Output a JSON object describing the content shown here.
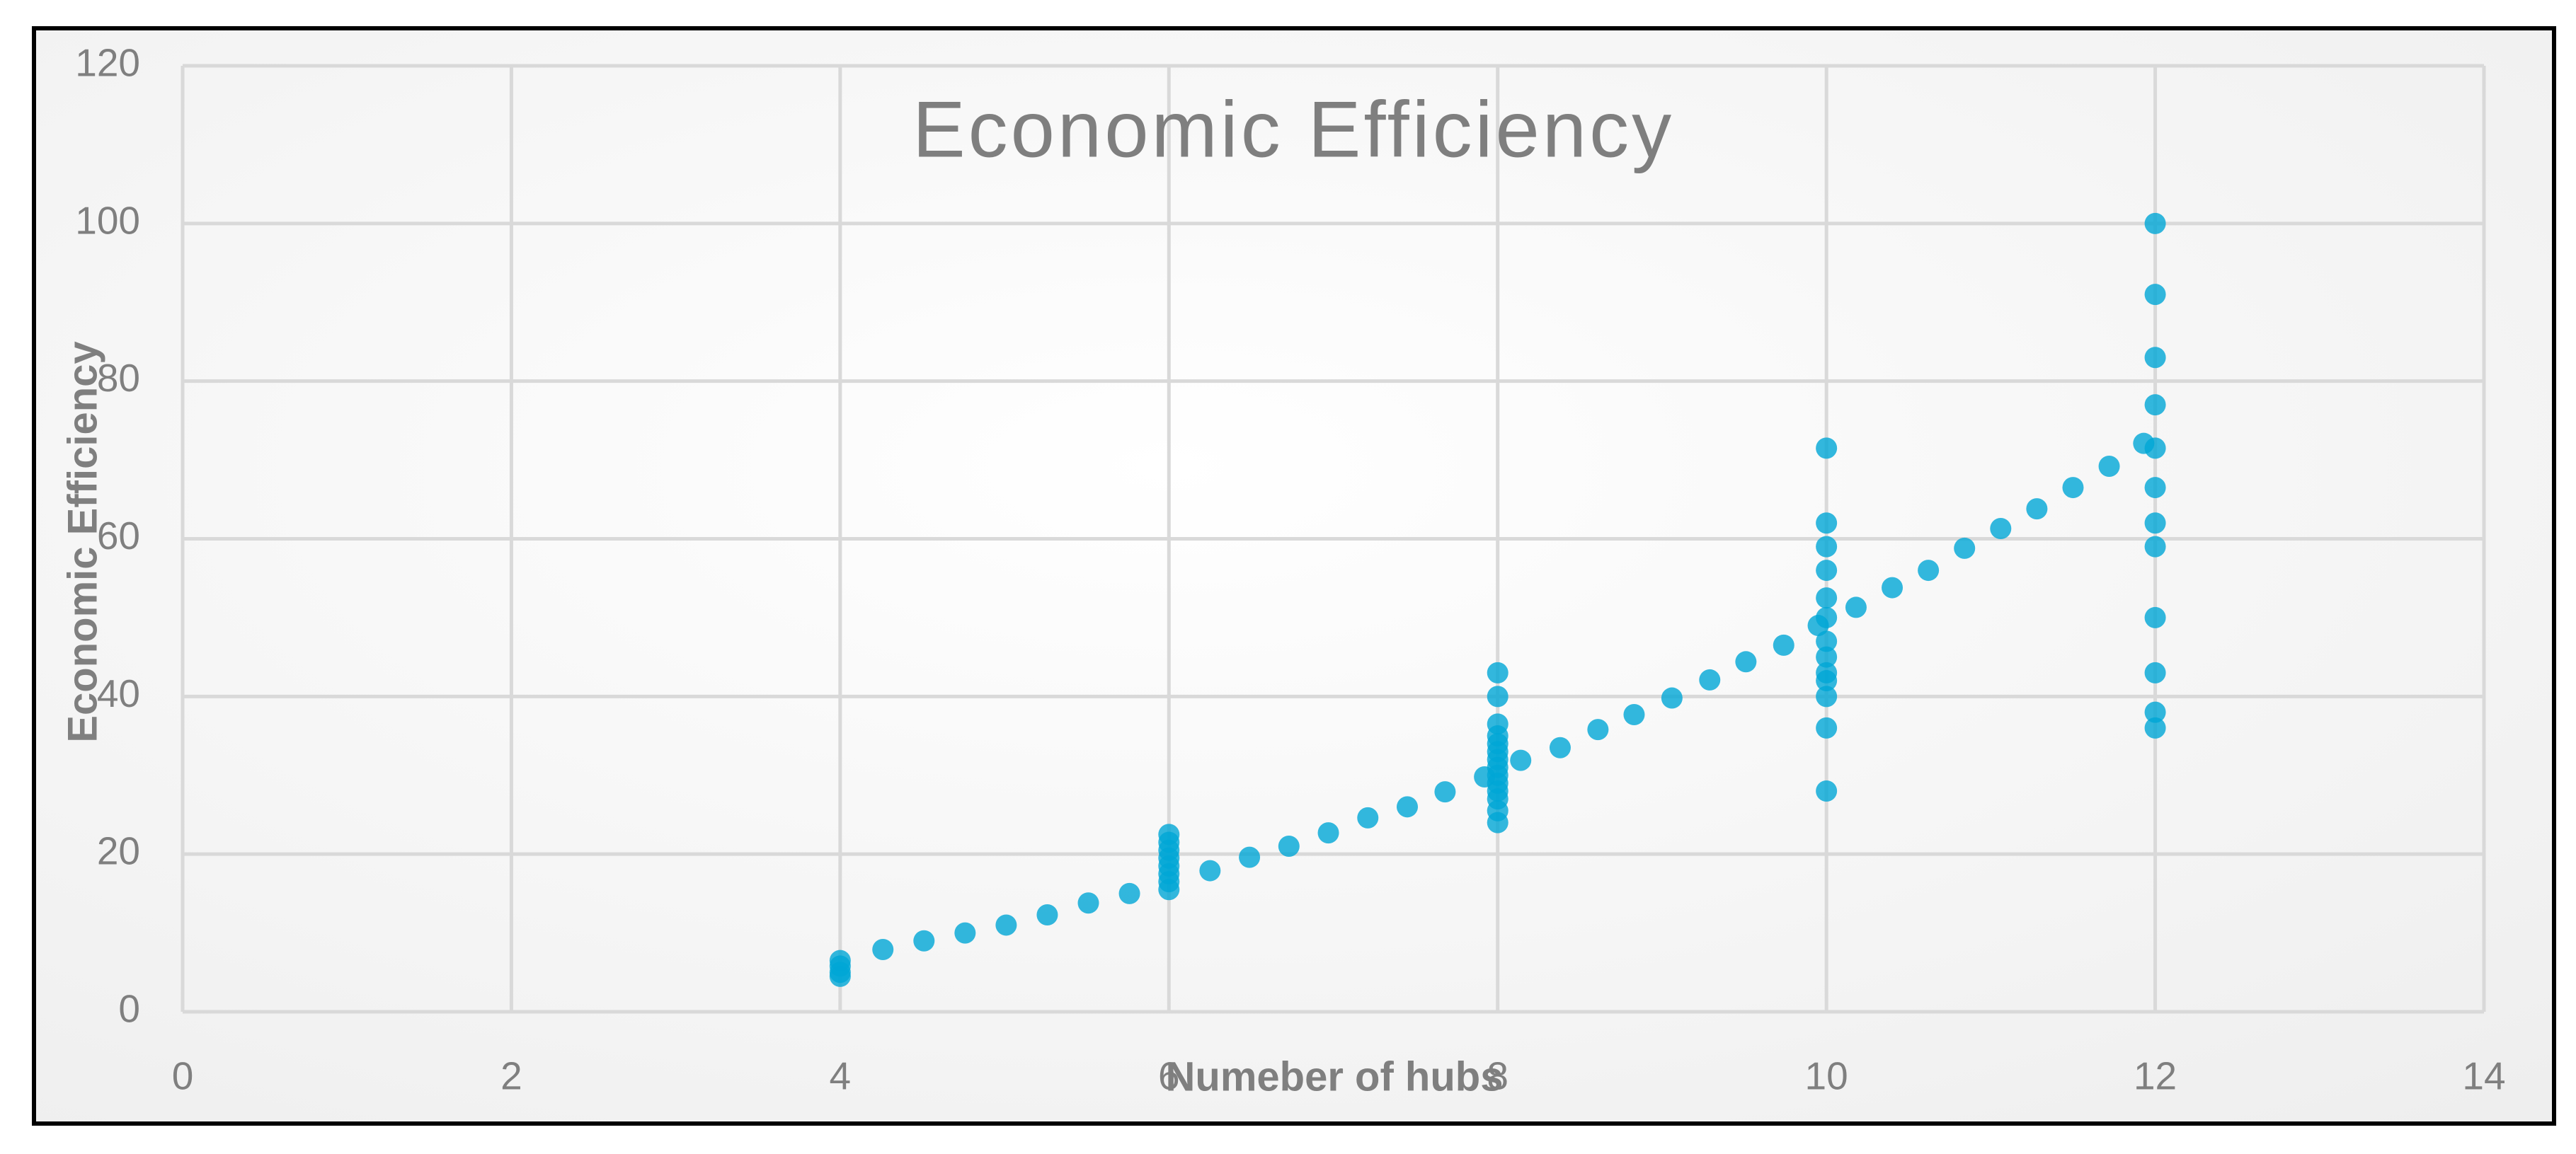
{
  "chart_data": {
    "type": "scatter",
    "title": "Economic Efficiency",
    "x_label": "Numeber of hubs",
    "y_label": "Economic Efficiency",
    "xlim": [
      0,
      14
    ],
    "xticks": [
      0,
      2,
      4,
      6,
      8,
      10,
      12,
      14
    ],
    "ylim": [
      0,
      120
    ],
    "yticks": [
      0,
      20,
      40,
      60,
      80,
      100,
      120
    ],
    "grid": true,
    "color": "#00a6d6",
    "x": [
      4,
      4,
      4,
      4,
      6,
      6,
      6,
      6,
      6,
      6,
      6,
      6,
      8,
      8,
      8,
      8,
      8,
      8,
      8,
      8,
      8,
      8,
      8,
      8,
      8,
      8,
      10,
      10,
      10,
      10,
      10,
      10,
      10,
      10,
      10,
      10,
      10,
      10,
      10,
      12,
      12,
      12,
      12,
      12,
      12,
      12,
      12,
      12,
      12,
      12,
      12,
      4.26,
      4.51,
      4.76,
      5.01,
      5.26,
      5.51,
      5.76,
      6.25,
      6.49,
      6.73,
      6.97,
      7.21,
      7.45,
      7.68,
      7.92,
      8.14,
      8.38,
      8.61,
      8.83,
      9.06,
      9.29,
      9.51,
      9.74,
      9.95,
      10.18,
      10.4,
      10.62,
      10.84,
      11.06,
      11.28,
      11.5,
      11.72,
      11.93
    ],
    "values": [
      4.5,
      5,
      5.8,
      6.5,
      15.5,
      16.5,
      17.5,
      18.5,
      19.5,
      20.5,
      21.5,
      22.5,
      24,
      25.5,
      27,
      28,
      29,
      30,
      31,
      32,
      33,
      34,
      35,
      36.5,
      40,
      43,
      28,
      36,
      40,
      42,
      43,
      45,
      47,
      50,
      52.5,
      56,
      59,
      62,
      71.5,
      36,
      38,
      43,
      50,
      59,
      62,
      66.5,
      71.5,
      77,
      83,
      91,
      100,
      7.9,
      9,
      10,
      11,
      12.3,
      13.8,
      15,
      17.9,
      19.6,
      21,
      22.7,
      24.6,
      26,
      27.9,
      29.8,
      31.9,
      33.5,
      35.8,
      37.7,
      39.8,
      42.1,
      44.4,
      46.5,
      49,
      51.3,
      53.8,
      56,
      58.8,
      61.3,
      63.8,
      66.5,
      69.2,
      72.1
    ]
  }
}
